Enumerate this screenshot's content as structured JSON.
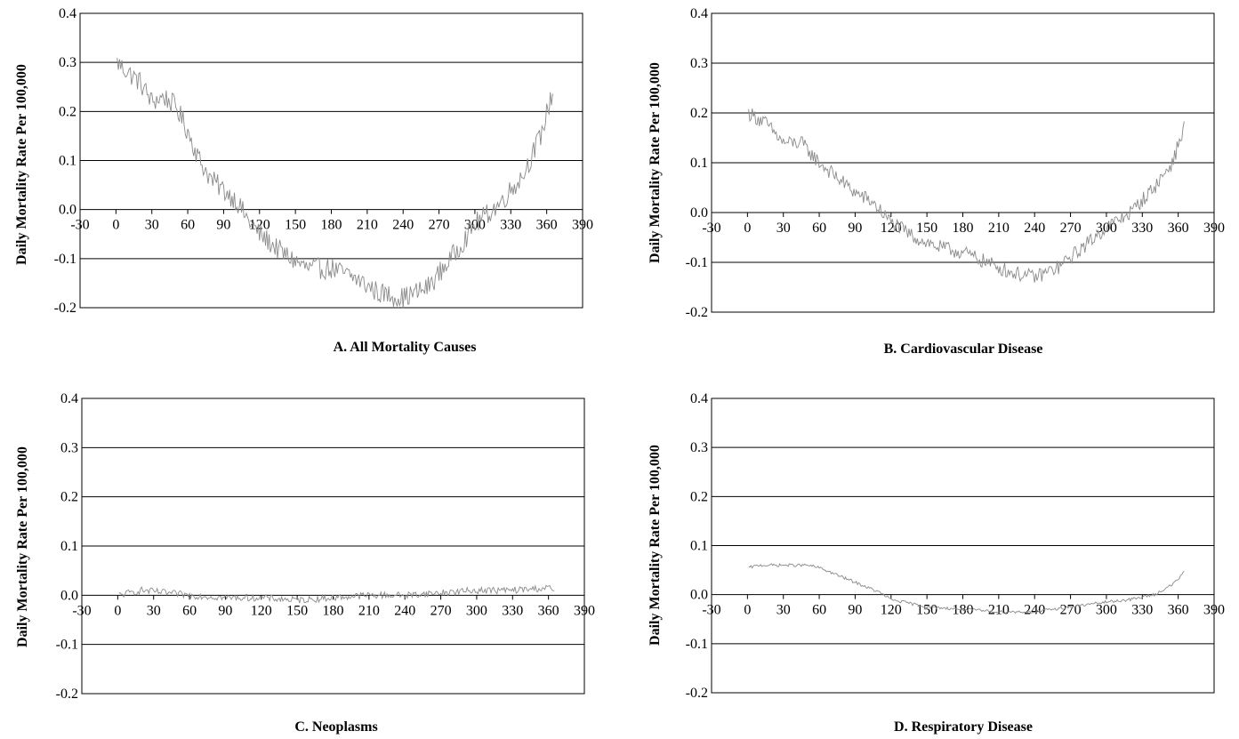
{
  "chart_data": [
    {
      "type": "line",
      "caption": "A. All Mortality Causes",
      "ylabel": "Daily Mortality Rate Per 100,000",
      "xlim": [
        -30,
        390
      ],
      "ylim": [
        -0.2,
        0.4
      ],
      "x_ticks": [
        -30,
        0,
        30,
        60,
        90,
        120,
        150,
        180,
        210,
        240,
        270,
        300,
        330,
        360,
        390
      ],
      "x_tick_labels": [
        "-30",
        "0",
        "30",
        "60",
        "90",
        "120",
        "150",
        "180",
        "210",
        "240",
        "270",
        "300",
        "330",
        "360",
        "390"
      ],
      "y_ticks": [
        -0.2,
        -0.1,
        0.0,
        0.1,
        0.2,
        0.3,
        0.4
      ],
      "y_tick_labels": [
        "-0.2",
        "-0.1",
        "0.0",
        "0.1",
        "0.2",
        "0.3",
        "0.4"
      ],
      "grid": true,
      "series": [
        {
          "x_start": 1,
          "x_end": 365,
          "profile_days": [
            1,
            10,
            20,
            30,
            40,
            50,
            60,
            70,
            80,
            90,
            100,
            110,
            120,
            140,
            160,
            180,
            200,
            220,
            240,
            260,
            280,
            300,
            320,
            340,
            355,
            365
          ],
          "profile_values": [
            0.3,
            0.28,
            0.26,
            0.22,
            0.23,
            0.21,
            0.16,
            0.1,
            0.06,
            0.04,
            0.02,
            -0.02,
            -0.05,
            -0.09,
            -0.12,
            -0.12,
            -0.14,
            -0.17,
            -0.18,
            -0.16,
            -0.1,
            -0.03,
            0.01,
            0.07,
            0.15,
            0.24
          ],
          "noise": 0.022
        }
      ]
    },
    {
      "type": "line",
      "caption": "B. Cardiovascular Disease",
      "ylabel": "Daily Mortality Rate Per 100,000",
      "xlim": [
        -30,
        390
      ],
      "ylim": [
        -0.2,
        0.4
      ],
      "x_ticks": [
        -30,
        0,
        30,
        60,
        90,
        120,
        150,
        180,
        210,
        240,
        270,
        300,
        330,
        360,
        390
      ],
      "x_tick_labels": [
        "-30",
        "0",
        "30",
        "60",
        "90",
        "120",
        "150",
        "180",
        "210",
        "240",
        "270",
        "300",
        "330",
        "360",
        "390"
      ],
      "y_ticks": [
        -0.2,
        -0.1,
        0.0,
        0.1,
        0.2,
        0.3,
        0.4
      ],
      "y_tick_labels": [
        "-0.2",
        "-0.1",
        "0.0",
        "0.1",
        "0.2",
        "0.3",
        "0.4"
      ],
      "grid": true,
      "series": [
        {
          "x_start": 1,
          "x_end": 365,
          "profile_days": [
            1,
            15,
            30,
            45,
            60,
            75,
            90,
            105,
            120,
            140,
            160,
            180,
            200,
            220,
            240,
            260,
            280,
            300,
            320,
            340,
            355,
            365
          ],
          "profile_values": [
            0.2,
            0.18,
            0.14,
            0.14,
            0.1,
            0.07,
            0.04,
            0.02,
            -0.02,
            -0.05,
            -0.07,
            -0.08,
            -0.1,
            -0.12,
            -0.13,
            -0.11,
            -0.07,
            -0.03,
            0.0,
            0.05,
            0.1,
            0.17
          ],
          "noise": 0.015
        }
      ]
    },
    {
      "type": "line",
      "caption": "C. Neoplasms",
      "ylabel": "Daily Mortality Rate Per 100,000",
      "xlim": [
        -30,
        390
      ],
      "ylim": [
        -0.2,
        0.4
      ],
      "x_ticks": [
        -30,
        0,
        30,
        60,
        90,
        120,
        150,
        180,
        210,
        240,
        270,
        300,
        330,
        360,
        390
      ],
      "x_tick_labels": [
        "-30",
        "0",
        "30",
        "60",
        "90",
        "120",
        "150",
        "180",
        "210",
        "240",
        "270",
        "300",
        "330",
        "360",
        "390"
      ],
      "y_ticks": [
        -0.2,
        -0.1,
        0.0,
        0.1,
        0.2,
        0.3,
        0.4
      ],
      "y_tick_labels": [
        "-0.2",
        "-0.1",
        "0.0",
        "0.1",
        "0.2",
        "0.3",
        "0.4"
      ],
      "grid": true,
      "series": [
        {
          "x_start": 1,
          "x_end": 365,
          "profile_days": [
            1,
            20,
            40,
            60,
            90,
            120,
            150,
            180,
            210,
            240,
            270,
            300,
            330,
            360,
            365
          ],
          "profile_values": [
            0.0,
            0.01,
            0.005,
            0.0,
            -0.005,
            -0.005,
            -0.01,
            -0.005,
            0.0,
            0.0,
            0.005,
            0.01,
            0.01,
            0.015,
            0.01
          ],
          "noise": 0.007
        }
      ]
    },
    {
      "type": "line",
      "caption": "D. Respiratory Disease",
      "ylabel": "Daily Mortality Rate Per 100,000",
      "xlim": [
        -30,
        390
      ],
      "ylim": [
        -0.2,
        0.4
      ],
      "x_ticks": [
        -30,
        0,
        30,
        60,
        90,
        120,
        150,
        180,
        210,
        240,
        270,
        300,
        330,
        360,
        390
      ],
      "x_tick_labels": [
        "-30",
        "0",
        "30",
        "60",
        "90",
        "120",
        "150",
        "180",
        "210",
        "240",
        "270",
        "300",
        "330",
        "360",
        "390"
      ],
      "y_ticks": [
        -0.2,
        -0.1,
        0.0,
        0.1,
        0.2,
        0.3,
        0.4
      ],
      "y_tick_labels": [
        "-0.2",
        "-0.1",
        "0.0",
        "0.1",
        "0.2",
        "0.3",
        "0.4"
      ],
      "grid": true,
      "series": [
        {
          "x_start": 1,
          "x_end": 365,
          "profile_days": [
            1,
            10,
            30,
            50,
            60,
            70,
            80,
            90,
            100,
            110,
            120,
            150,
            180,
            210,
            240,
            270,
            300,
            320,
            340,
            355,
            365
          ],
          "profile_values": [
            0.055,
            0.06,
            0.06,
            0.06,
            0.055,
            0.045,
            0.035,
            0.025,
            0.015,
            0.005,
            -0.01,
            -0.025,
            -0.03,
            -0.035,
            -0.035,
            -0.025,
            -0.015,
            -0.01,
            0.0,
            0.02,
            0.045
          ],
          "noise": 0.003
        }
      ]
    }
  ]
}
